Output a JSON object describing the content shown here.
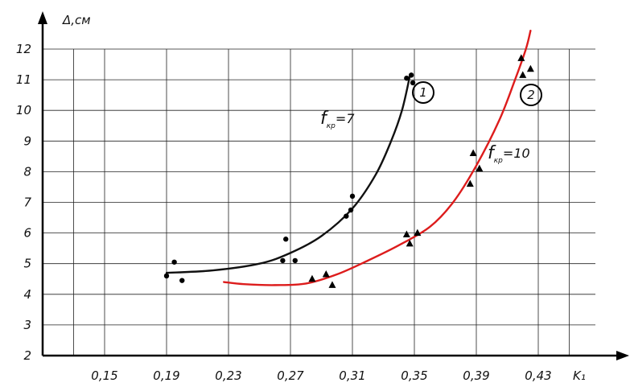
{
  "chart_data": {
    "type": "scatter",
    "title": "",
    "xlabel": "K₁",
    "ylabel": "Δ,см",
    "xlim": [
      0.11,
      0.47
    ],
    "ylim": [
      2,
      12.5
    ],
    "x_ticks": [
      0.15,
      0.19,
      0.23,
      0.27,
      0.31,
      0.35,
      0.39,
      0.43
    ],
    "x_tick_labels": [
      "0,15",
      "0,19",
      "0,23",
      "0,27",
      "0,31",
      "0,35",
      "0,39",
      "0,43"
    ],
    "y_ticks": [
      2,
      3,
      4,
      5,
      6,
      7,
      8,
      9,
      10,
      11,
      12
    ],
    "grid": true,
    "series": [
      {
        "name": "1",
        "label_text": "f",
        "label_sub": "кр",
        "label_value": "=7",
        "marker": "circle",
        "color": "#111111",
        "points": [
          [
            0.19,
            4.6
          ],
          [
            0.195,
            5.05
          ],
          [
            0.2,
            4.45
          ],
          [
            0.265,
            5.1
          ],
          [
            0.267,
            5.8
          ],
          [
            0.273,
            5.1
          ],
          [
            0.306,
            6.55
          ],
          [
            0.309,
            6.75
          ],
          [
            0.31,
            7.2
          ],
          [
            0.345,
            11.05
          ],
          [
            0.348,
            11.15
          ],
          [
            0.349,
            10.9
          ]
        ],
        "curve": [
          [
            0.19,
            4.7
          ],
          [
            0.22,
            4.78
          ],
          [
            0.25,
            5.0
          ],
          [
            0.27,
            5.35
          ],
          [
            0.29,
            5.9
          ],
          [
            0.31,
            6.8
          ],
          [
            0.325,
            7.9
          ],
          [
            0.335,
            9.0
          ],
          [
            0.342,
            10.0
          ],
          [
            0.347,
            11.1
          ]
        ]
      },
      {
        "name": "2",
        "label_text": "f",
        "label_sub": "кр",
        "label_value": "=10",
        "marker": "triangle",
        "color": "#dd1c1c",
        "points": [
          [
            0.284,
            4.5
          ],
          [
            0.293,
            4.65
          ],
          [
            0.297,
            4.3
          ],
          [
            0.345,
            5.95
          ],
          [
            0.347,
            5.65
          ],
          [
            0.352,
            6.0
          ],
          [
            0.386,
            7.6
          ],
          [
            0.388,
            8.6
          ],
          [
            0.392,
            8.1
          ],
          [
            0.419,
            11.7
          ],
          [
            0.42,
            11.15
          ],
          [
            0.425,
            11.35
          ]
        ],
        "curve": [
          [
            0.227,
            4.4
          ],
          [
            0.24,
            4.33
          ],
          [
            0.26,
            4.3
          ],
          [
            0.28,
            4.35
          ],
          [
            0.3,
            4.65
          ],
          [
            0.32,
            5.1
          ],
          [
            0.34,
            5.6
          ],
          [
            0.36,
            6.2
          ],
          [
            0.375,
            7.0
          ],
          [
            0.39,
            8.2
          ],
          [
            0.405,
            9.7
          ],
          [
            0.415,
            11.0
          ],
          [
            0.422,
            12.0
          ],
          [
            0.425,
            12.6
          ]
        ]
      }
    ]
  }
}
